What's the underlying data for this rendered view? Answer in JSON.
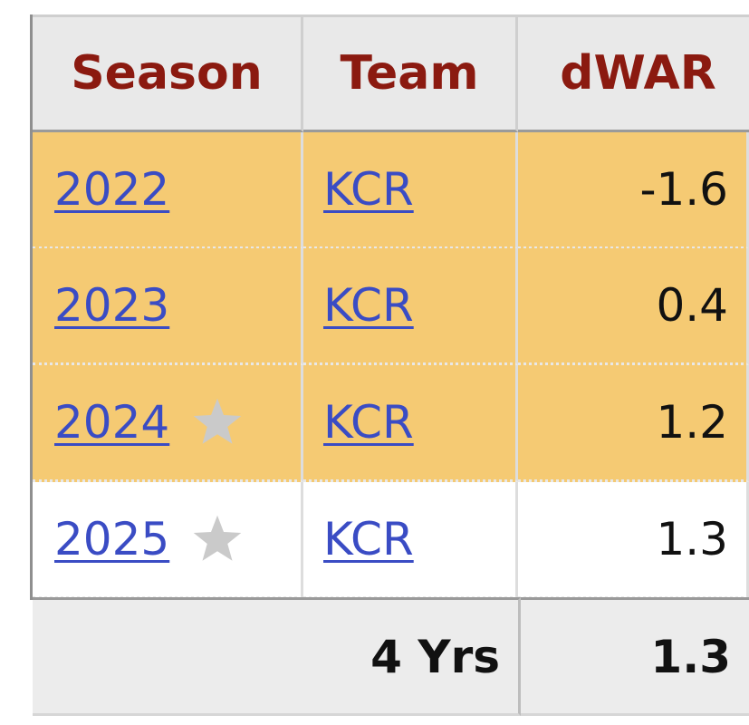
{
  "table": {
    "header": [
      "Season",
      "Team",
      "dWAR"
    ],
    "rows": [
      {
        "season": "2022",
        "team": "KCR",
        "dwar": "-1.6",
        "highlighted": true,
        "star": false
      },
      {
        "season": "2023",
        "team": "KCR",
        "dwar": "0.4",
        "highlighted": true,
        "star": false
      },
      {
        "season": "2024",
        "team": "KCR",
        "dwar": "1.2",
        "highlighted": true,
        "star": true
      },
      {
        "season": "2025",
        "team": "KCR",
        "dwar": "1.3",
        "highlighted": false,
        "star": true
      }
    ],
    "footer": {
      "label": "4 Yrs",
      "value": "1.3"
    }
  }
}
